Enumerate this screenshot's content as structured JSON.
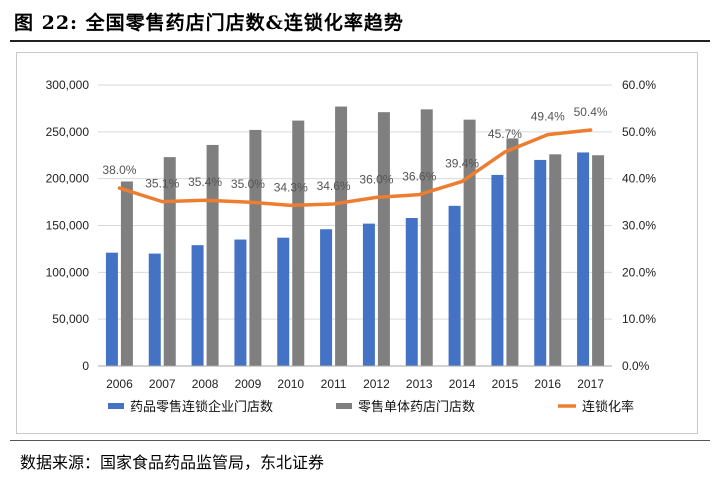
{
  "figure_title": "图  22:  全国零售药店门店数&连锁化率趋势",
  "source": "数据来源：国家食品药品监管局，东北证券",
  "colors": {
    "bar_chain": "#4472C4",
    "bar_single": "#7F7F7F",
    "line_rate": "#ED7D31",
    "grid": "#D9D9D9",
    "axis": "#A6A6A6"
  },
  "chart_data": {
    "type": "bar",
    "categories": [
      "2006",
      "2007",
      "2008",
      "2009",
      "2010",
      "2011",
      "2012",
      "2013",
      "2014",
      "2015",
      "2016",
      "2017"
    ],
    "series": [
      {
        "name": "药品零售连锁企业门店数",
        "kind": "bar",
        "axis": "left",
        "values": [
          121000,
          120000,
          129000,
          135000,
          137000,
          146000,
          152000,
          158000,
          171000,
          204000,
          220000,
          228000
        ]
      },
      {
        "name": "零售单体药店门店数",
        "kind": "bar",
        "axis": "left",
        "values": [
          197000,
          223000,
          236000,
          252000,
          262000,
          277000,
          271000,
          274000,
          263000,
          243000,
          226000,
          225000
        ]
      },
      {
        "name": "连锁化率",
        "kind": "line",
        "axis": "right",
        "values": [
          38.0,
          35.1,
          35.4,
          35.0,
          34.3,
          34.6,
          36.0,
          36.6,
          39.4,
          45.7,
          49.4,
          50.4
        ],
        "labels": [
          "38.0%",
          "35.1%",
          "35.4%",
          "35.0%",
          "34.3%",
          "34.6%",
          "36.0%",
          "36.6%",
          "39.4%",
          "45.7%",
          "49.4%",
          "50.4%"
        ]
      }
    ],
    "y_left": {
      "min": 0,
      "max": 300000,
      "ticks": [
        "0",
        "50,000",
        "100,000",
        "150,000",
        "200,000",
        "250,000",
        "300,000"
      ]
    },
    "y_right": {
      "min": 0,
      "max": 60,
      "ticks": [
        "0.0%",
        "10.0%",
        "20.0%",
        "30.0%",
        "40.0%",
        "50.0%",
        "60.0%"
      ]
    },
    "grid": true,
    "legend_position": "bottom"
  }
}
